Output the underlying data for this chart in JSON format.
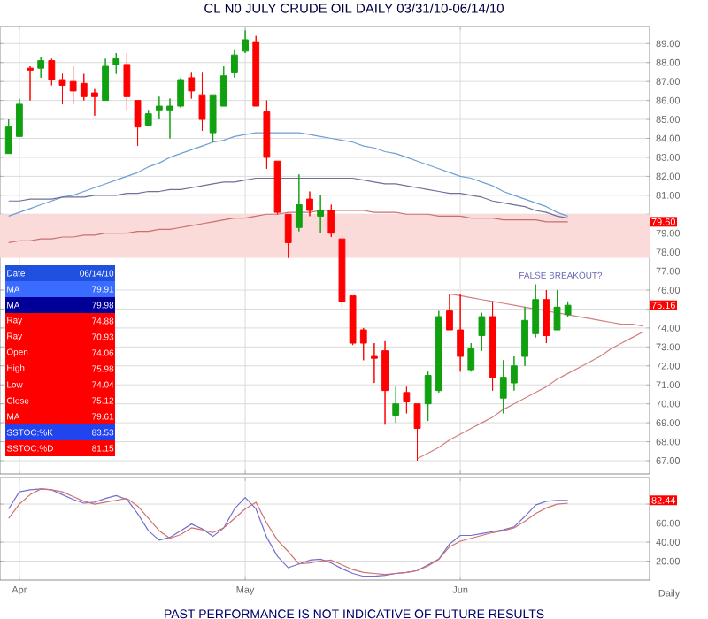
{
  "chart_data": [
    {
      "type": "candlestick",
      "title": "CL N0 JULY CRUDE OIL DAILY 03/31/10-06/14/10",
      "categories": [
        null,
        null,
        null,
        null,
        null,
        null,
        null,
        null,
        null,
        null,
        null,
        null,
        null,
        null,
        null,
        null,
        null,
        null,
        null,
        null,
        null,
        null,
        null,
        null,
        null,
        null,
        null,
        null,
        null,
        null,
        null,
        null,
        null,
        null,
        null,
        null,
        null,
        null,
        null,
        null,
        null,
        null,
        null,
        null,
        null,
        null,
        null,
        null,
        null,
        null,
        null,
        null,
        null,
        null,
        null,
        null,
        null,
        null,
        null,
        null
      ],
      "ohlc": [
        [
          83.2,
          85.0,
          83.2,
          84.6
        ],
        [
          84.1,
          86.1,
          84.1,
          85.8
        ],
        [
          87.7,
          87.8,
          86.0,
          87.6
        ],
        [
          87.7,
          88.3,
          87.2,
          88.1
        ],
        [
          88.1,
          88.2,
          86.8,
          87.1
        ],
        [
          87.1,
          87.4,
          85.8,
          86.8
        ],
        [
          87.0,
          87.8,
          85.8,
          86.5
        ],
        [
          86.9,
          87.4,
          86.0,
          86.2
        ],
        [
          86.4,
          86.6,
          85.2,
          86.2
        ],
        [
          86.0,
          88.2,
          86.0,
          87.8
        ],
        [
          87.9,
          88.5,
          87.4,
          88.2
        ],
        [
          87.9,
          88.5,
          85.5,
          86.2
        ],
        [
          86.0,
          86.0,
          83.6,
          84.6
        ],
        [
          84.7,
          85.5,
          84.7,
          85.3
        ],
        [
          85.5,
          86.2,
          85.0,
          85.7
        ],
        [
          85.5,
          86.1,
          84.0,
          85.7
        ],
        [
          85.7,
          87.2,
          85.6,
          87.1
        ],
        [
          87.2,
          87.5,
          86.1,
          86.5
        ],
        [
          86.3,
          87.5,
          84.4,
          85.0
        ],
        [
          84.3,
          86.3,
          83.8,
          86.3
        ],
        [
          85.7,
          87.8,
          85.7,
          87.3
        ],
        [
          87.5,
          88.7,
          87.2,
          88.4
        ],
        [
          88.6,
          89.7,
          88.5,
          89.2
        ],
        [
          89.1,
          89.4,
          85.7,
          85.7
        ],
        [
          85.4,
          86.0,
          82.4,
          83.0
        ],
        [
          82.8,
          82.8,
          80.0,
          80.1
        ],
        [
          80.0,
          80.0,
          77.7,
          78.5
        ],
        [
          79.3,
          82.1,
          79.1,
          80.5
        ],
        [
          80.8,
          81.2,
          79.9,
          80.2
        ],
        [
          79.9,
          81.0,
          79.0,
          80.2
        ],
        [
          80.2,
          80.5,
          78.8,
          79.0
        ],
        [
          78.7,
          78.7,
          75.1,
          75.4
        ],
        [
          75.7,
          75.7,
          73.1,
          73.2
        ],
        [
          73.9,
          74.0,
          72.3,
          73.2
        ],
        [
          72.5,
          73.2,
          71.1,
          72.4
        ],
        [
          72.8,
          73.3,
          68.9,
          70.7
        ],
        [
          69.4,
          70.9,
          69.0,
          70.0
        ],
        [
          70.6,
          70.9,
          69.5,
          70.1
        ],
        [
          70.0,
          70.0,
          67.0,
          68.7
        ],
        [
          70.0,
          71.7,
          69.1,
          71.5
        ],
        [
          70.7,
          74.9,
          70.6,
          74.6
        ],
        [
          74.9,
          75.8,
          73.9,
          73.9
        ],
        [
          73.9,
          75.8,
          71.7,
          72.5
        ],
        [
          71.8,
          73.2,
          71.7,
          72.9
        ],
        [
          73.6,
          74.8,
          72.8,
          74.6
        ],
        [
          74.6,
          75.4,
          70.7,
          71.4
        ],
        [
          70.3,
          72.3,
          69.5,
          71.4
        ],
        [
          71.1,
          72.5,
          70.7,
          72.0
        ],
        [
          72.5,
          75.1,
          72.0,
          74.4
        ],
        [
          73.7,
          76.3,
          73.5,
          75.5
        ],
        [
          75.5,
          76.0,
          73.2,
          73.6
        ],
        [
          73.9,
          76.0,
          73.9,
          75.1
        ],
        [
          74.7,
          75.4,
          74.6,
          75.2
        ],
        null,
        null,
        null,
        null,
        null,
        null,
        null
      ],
      "series": [
        {
          "type": "line",
          "color": "#6e9fd0",
          "values": [
            79.9,
            80.1,
            80.3,
            80.5,
            80.7,
            80.9,
            81.0,
            81.2,
            81.4,
            81.6,
            81.8,
            82.0,
            82.2,
            82.5,
            82.7,
            83.0,
            83.2,
            83.4,
            83.6,
            83.8,
            83.9,
            84.1,
            84.2,
            84.3,
            84.3,
            84.3,
            84.3,
            84.3,
            84.2,
            84.1,
            84.0,
            83.9,
            83.8,
            83.6,
            83.5,
            83.3,
            83.2,
            83.0,
            82.8,
            82.6,
            82.4,
            82.2,
            82.0,
            81.9,
            81.7,
            81.5,
            81.2,
            81.0,
            80.8,
            80.6,
            80.4,
            80.1,
            79.9,
            null,
            null,
            null,
            null,
            null,
            null,
            null
          ]
        },
        {
          "type": "line",
          "color": "#6f6f9a",
          "values": [
            80.7,
            80.7,
            80.8,
            80.8,
            80.8,
            80.9,
            80.9,
            80.9,
            81.0,
            81.0,
            81.0,
            81.1,
            81.1,
            81.2,
            81.2,
            81.3,
            81.3,
            81.4,
            81.5,
            81.6,
            81.7,
            81.7,
            81.8,
            81.9,
            81.9,
            81.9,
            81.9,
            81.9,
            81.9,
            81.9,
            81.9,
            81.9,
            81.9,
            81.8,
            81.7,
            81.6,
            81.6,
            81.5,
            81.4,
            81.3,
            81.2,
            81.1,
            81.1,
            81.0,
            80.9,
            80.7,
            80.6,
            80.5,
            80.4,
            80.2,
            80.1,
            79.9,
            79.8,
            null,
            null,
            null,
            null,
            null,
            null,
            null
          ]
        },
        {
          "type": "line",
          "color": "#c87070",
          "values": [
            78.5,
            78.6,
            78.6,
            78.7,
            78.7,
            78.8,
            78.8,
            78.9,
            78.9,
            79.0,
            79.0,
            79.0,
            79.1,
            79.1,
            79.2,
            79.2,
            79.3,
            79.4,
            79.5,
            79.6,
            79.7,
            79.8,
            79.8,
            79.9,
            80.0,
            80.0,
            80.1,
            80.1,
            80.1,
            80.2,
            80.2,
            80.2,
            80.2,
            80.2,
            80.1,
            80.1,
            80.1,
            80.0,
            80.0,
            80.0,
            79.9,
            79.9,
            79.9,
            79.8,
            79.8,
            79.8,
            79.7,
            79.7,
            79.7,
            79.7,
            79.6,
            79.6,
            79.6,
            null,
            null,
            null,
            null,
            null,
            null,
            null
          ]
        },
        {
          "type": "line",
          "color": "#d08080",
          "values": [
            null,
            null,
            null,
            null,
            null,
            null,
            null,
            null,
            null,
            null,
            null,
            null,
            null,
            null,
            null,
            null,
            null,
            null,
            null,
            null,
            null,
            null,
            null,
            null,
            null,
            null,
            null,
            null,
            null,
            null,
            null,
            null,
            null,
            null,
            null,
            null,
            null,
            null,
            null,
            null,
            null,
            75.8,
            75.7,
            75.6,
            75.5,
            75.4,
            75.3,
            75.2,
            75.1,
            75.0,
            74.9,
            74.8,
            74.7,
            74.6,
            74.5,
            74.4,
            74.3,
            74.2,
            74.2,
            74.1
          ]
        },
        {
          "type": "line",
          "color": "#d08080",
          "values": [
            null,
            null,
            null,
            null,
            null,
            null,
            null,
            null,
            null,
            null,
            null,
            null,
            null,
            null,
            null,
            null,
            null,
            null,
            null,
            null,
            null,
            null,
            null,
            null,
            null,
            null,
            null,
            null,
            null,
            null,
            null,
            null,
            null,
            null,
            null,
            null,
            null,
            null,
            67.1,
            67.4,
            67.7,
            68.1,
            68.4,
            68.7,
            69.0,
            69.3,
            69.7,
            70.0,
            70.3,
            70.6,
            70.9,
            71.3,
            71.6,
            71.9,
            72.2,
            72.5,
            72.9,
            73.2,
            73.5,
            73.8
          ]
        }
      ],
      "bands": [
        {
          "axis": "y",
          "from": 77.7,
          "to": 80.0,
          "color": "#fbdada"
        }
      ],
      "ylim": [
        66.3,
        89.9
      ],
      "yticks": [
        {
          "value": 67,
          "label": "67.00"
        },
        {
          "value": 68,
          "label": "68.00"
        },
        {
          "value": 69,
          "label": "69.00"
        },
        {
          "value": 70,
          "label": "70.00"
        },
        {
          "value": 71,
          "label": "71.00"
        },
        {
          "value": 72,
          "label": "72.00"
        },
        {
          "value": 73,
          "label": "73.00"
        },
        {
          "value": 74,
          "label": "74.00"
        },
        {
          "value": 75,
          "label": null
        },
        {
          "value": 76,
          "label": "76.00"
        },
        {
          "value": 77,
          "label": "77.00"
        },
        {
          "value": 78,
          "label": "78.00"
        },
        {
          "value": 79,
          "label": "79.00"
        },
        {
          "value": 80,
          "label": null
        },
        {
          "value": 81,
          "label": "81.00"
        },
        {
          "value": 82,
          "label": "82.00"
        },
        {
          "value": 83,
          "label": "83.00"
        },
        {
          "value": 84,
          "label": "84.00"
        },
        {
          "value": 85,
          "label": "85.00"
        },
        {
          "value": 86,
          "label": "86.00"
        },
        {
          "value": 87,
          "label": "87.00"
        },
        {
          "value": 88,
          "label": "88.00"
        },
        {
          "value": 89,
          "label": "89.00"
        }
      ],
      "grid": true,
      "annotations": [
        "FALSE BREAKOUT?",
        "79.60",
        "75.16",
        "Date",
        "06/14/10",
        "MA",
        "79.91",
        "MA",
        "79.98",
        "Ray",
        "74.88",
        "Ray",
        "70.93",
        "Open",
        "74.06",
        "High",
        "75.98",
        "Low",
        "74.04",
        "Close",
        "75.12",
        "MA",
        "79.61",
        "SSTOC:%K",
        "83.53",
        "SSTOC:%D",
        "81.15"
      ]
    },
    {
      "type": "line",
      "categories": [
        null,
        "Apr",
        null,
        null,
        null,
        null,
        null,
        null,
        null,
        null,
        null,
        null,
        null,
        null,
        null,
        null,
        null,
        null,
        null,
        null,
        null,
        null,
        "May",
        null,
        null,
        null,
        null,
        null,
        null,
        null,
        null,
        null,
        null,
        null,
        null,
        null,
        null,
        null,
        null,
        null,
        null,
        null,
        "Jun",
        null,
        null,
        null,
        null,
        null,
        null,
        null,
        null,
        null,
        null,
        null,
        null,
        null,
        null,
        null,
        null,
        null
      ],
      "series": [
        {
          "color": "#7070d0",
          "values": [
            75,
            93,
            95,
            96,
            95,
            90,
            85,
            81,
            82,
            86,
            89,
            85,
            70,
            52,
            42,
            45,
            52,
            59,
            54,
            46,
            55,
            75,
            87,
            75,
            45,
            25,
            13,
            17,
            21,
            22,
            18,
            12,
            7,
            4,
            4,
            5,
            7,
            8,
            10,
            16,
            22,
            38,
            47,
            47,
            49,
            51,
            53,
            56,
            67,
            79,
            83,
            84,
            84,
            null,
            null,
            null,
            null,
            null,
            null,
            null
          ]
        },
        {
          "color": "#d07070",
          "values": [
            65,
            80,
            90,
            96,
            95,
            93,
            88,
            83,
            80,
            82,
            84,
            86,
            78,
            65,
            52,
            44,
            48,
            55,
            53,
            50,
            55,
            65,
            75,
            82,
            60,
            42,
            30,
            17,
            18,
            20,
            21,
            16,
            11,
            8,
            7,
            6,
            7,
            8,
            10,
            15,
            22,
            35,
            41,
            44,
            47,
            50,
            52,
            55,
            62,
            70,
            76,
            80,
            81,
            null,
            null,
            null,
            null,
            null,
            null,
            null
          ]
        }
      ],
      "ylim": [
        0,
        108
      ],
      "yticks": [
        {
          "value": 20,
          "label": "20.00"
        },
        {
          "value": 40,
          "label": "40.00"
        },
        {
          "value": 60,
          "label": "60.00"
        },
        {
          "value": 80,
          "label": null
        }
      ],
      "grid": true,
      "annotations": [
        "82.44",
        "Daily",
        "PAST PERFORMANCE IS NOT INDICATIVE OF FUTURE RESULTS"
      ]
    }
  ]
}
